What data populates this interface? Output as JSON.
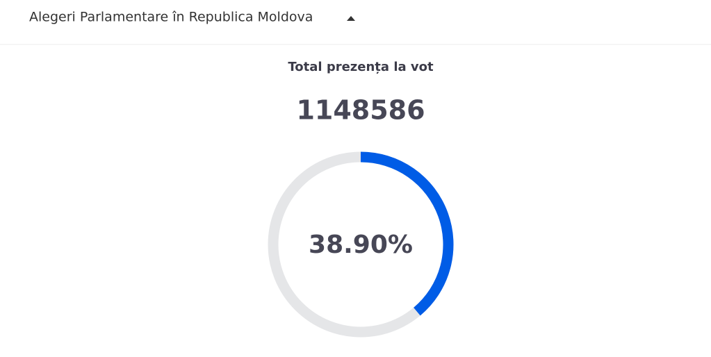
{
  "header": {
    "title": "Alegeri Parlamentare în Republica Moldova"
  },
  "turnout": {
    "title": "Total prezența la vot",
    "total": 1148586,
    "percent": {
      "value": 38.9,
      "label": "38.90%"
    },
    "color": "#005ce6",
    "track_color": "#e5e6e8"
  }
}
